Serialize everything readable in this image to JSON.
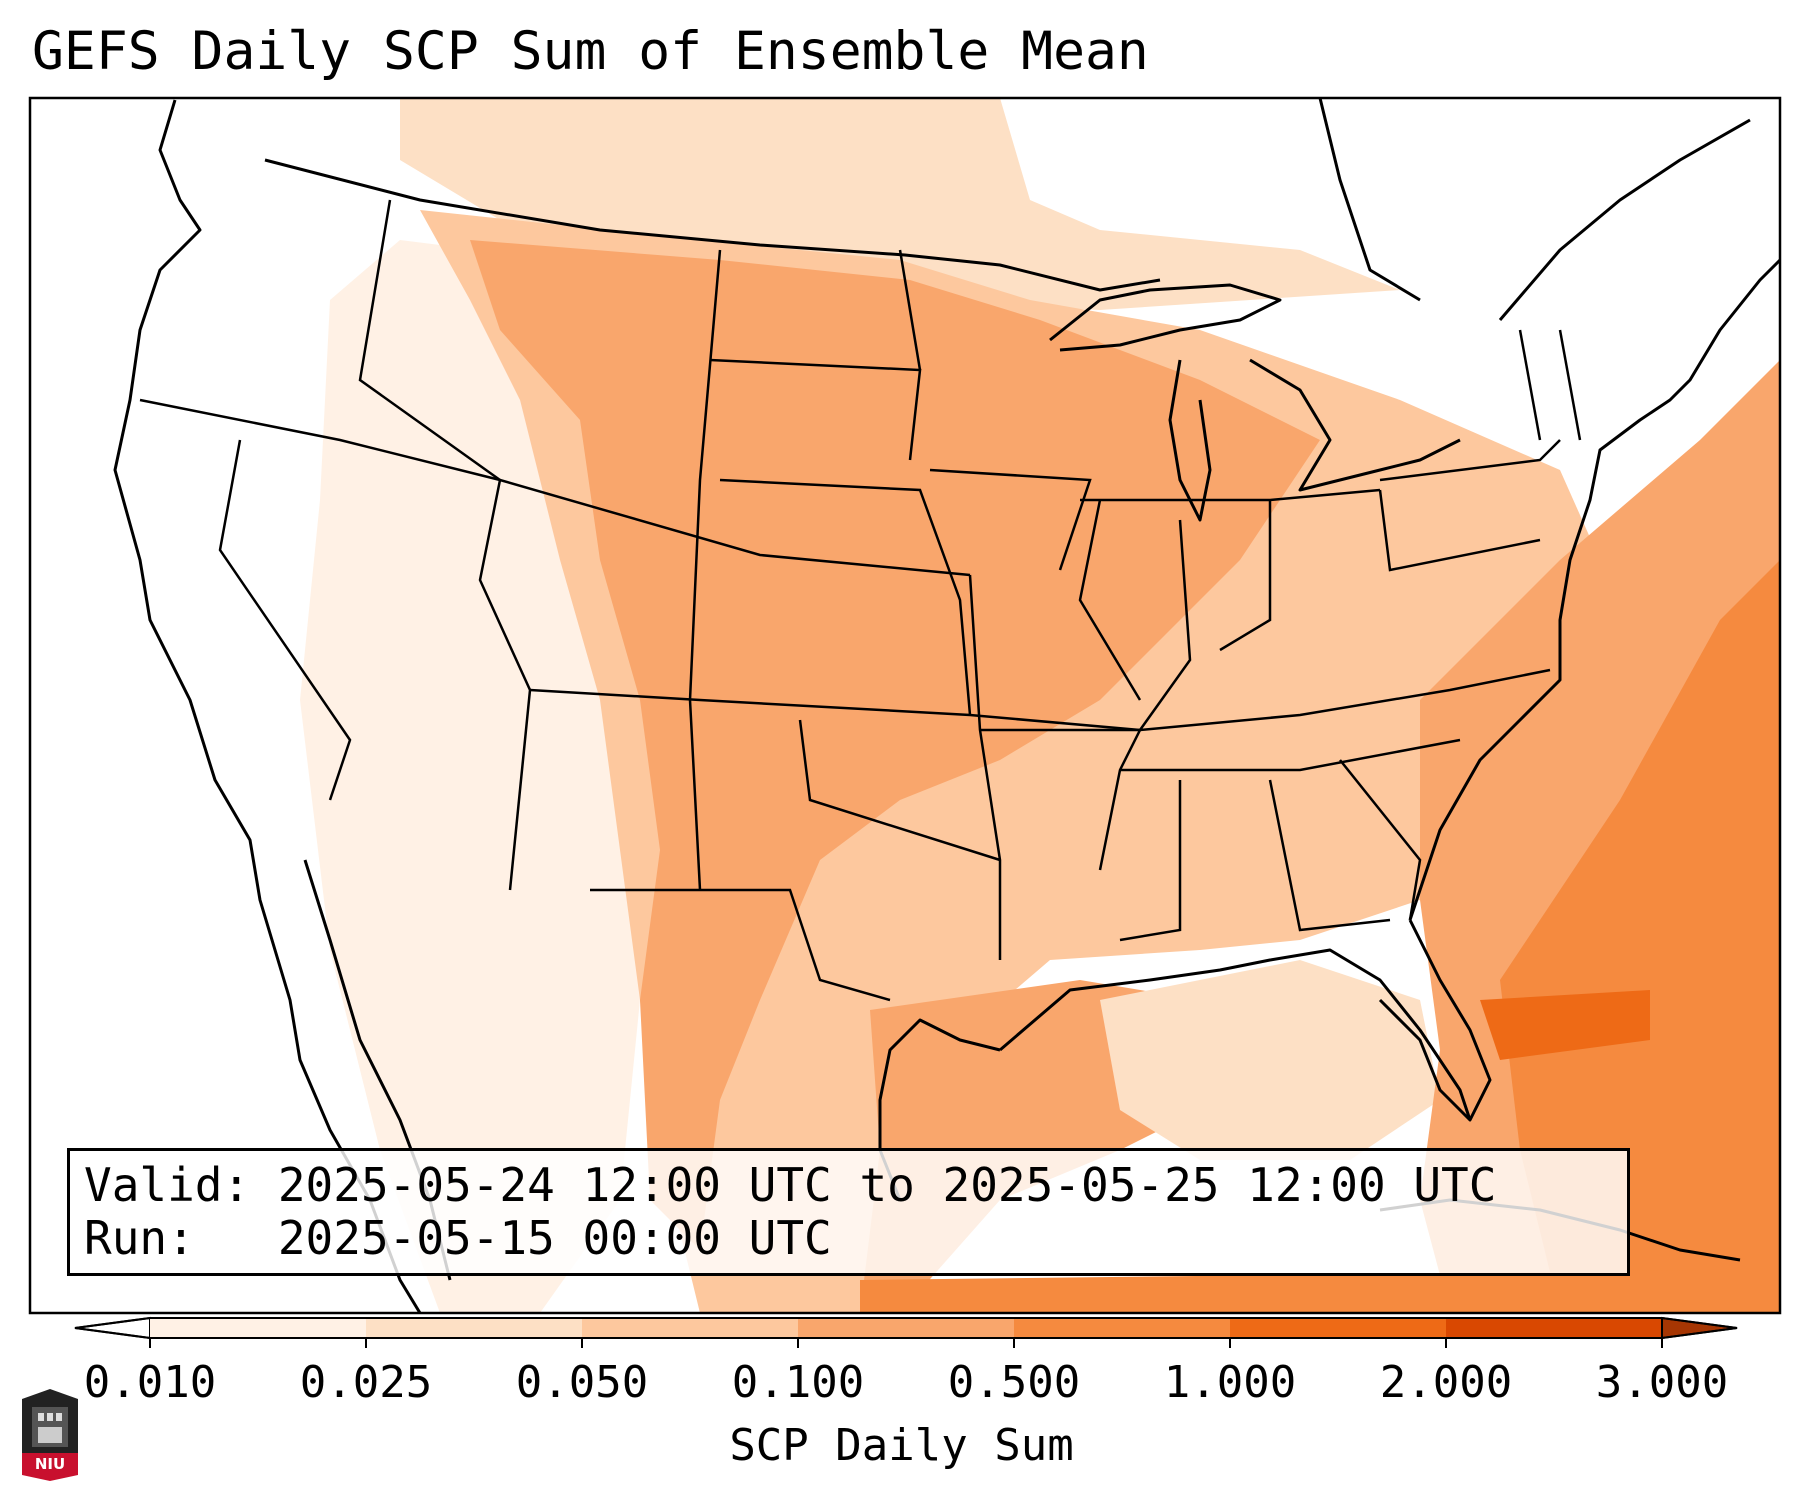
{
  "title": "GEFS Daily SCP Sum of Ensemble Mean",
  "info": {
    "valid_line": "Valid: 2025-05-24 12:00 UTC to 2025-05-25 12:00 UTC",
    "run_line": "Run:   2025-05-15 00:00 UTC"
  },
  "colorbar": {
    "label": "SCP Daily Sum",
    "ticks": [
      "0.010",
      "0.025",
      "0.050",
      "0.100",
      "0.500",
      "1.000",
      "2.000",
      "3.000"
    ],
    "colors": [
      "#fff1e5",
      "#fde0c5",
      "#fdc89e",
      "#f9a66c",
      "#f58a3f",
      "#ee6a16",
      "#d94801"
    ],
    "under_color": "#ffffff",
    "over_color": "#a63603",
    "extend": "both"
  },
  "logo": {
    "text": "NIU"
  }
}
